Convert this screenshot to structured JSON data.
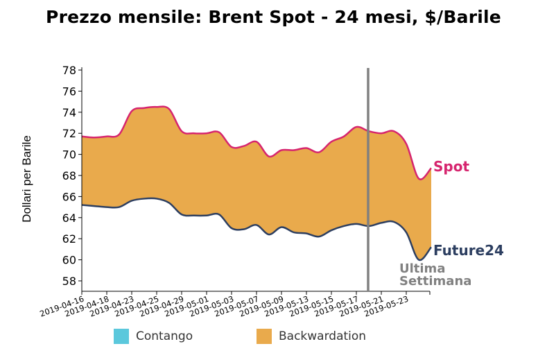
{
  "title": "Prezzo mensile: Brent Spot - 24 mesi, $/Barile",
  "colors": {
    "spot": "#d6246e",
    "future": "#2c3e60",
    "backwardation": "#e9aa4c",
    "contango": "#5bc8dc",
    "marker": "#808080"
  },
  "annotations": {
    "spot_label": "Spot",
    "future_label": "Future24",
    "marker_line1": "Ultima",
    "marker_line2": "Settimana"
  },
  "legend": {
    "contango": "Contango",
    "backwardation": "Backwardation"
  },
  "chart_data": {
    "type": "area",
    "title": "Prezzo mensile: Brent Spot - 24 mesi, $/Barile",
    "xlabel": "",
    "ylabel": "Dollari per Barile",
    "ylim": [
      57,
      78.2
    ],
    "yticks": [
      58,
      60,
      62,
      64,
      66,
      68,
      70,
      72,
      74,
      76,
      78
    ],
    "xtick_labels": [
      "2019-04-16",
      "2019-04-18",
      "2019-04-23",
      "2019-04-25",
      "2019-04-29",
      "2019-05-01",
      "2019-05-03",
      "2019-05-07",
      "2019-05-09",
      "2019-05-13",
      "2019-05-15",
      "2019-05-17",
      "2019-05-21",
      "2019-05-23"
    ],
    "grid": false,
    "legend_position": "bottom",
    "vertical_marker": {
      "label": "Ultima Settimana",
      "x_index": 23.1
    },
    "series": [
      {
        "name": "Spot",
        "values": [
          71.7,
          71.6,
          71.7,
          71.9,
          74.1,
          74.4,
          74.5,
          74.3,
          72.2,
          72.0,
          72.0,
          72.1,
          70.7,
          70.8,
          71.2,
          69.8,
          70.4,
          70.4,
          70.6,
          70.2,
          71.2,
          71.7,
          72.6,
          72.2,
          72.0,
          72.2,
          71.0,
          67.7,
          68.7
        ]
      },
      {
        "name": "Future24",
        "values": [
          65.2,
          65.1,
          65.0,
          65.0,
          65.6,
          65.8,
          65.8,
          65.4,
          64.3,
          64.2,
          64.2,
          64.3,
          63.0,
          62.9,
          63.3,
          62.4,
          63.1,
          62.6,
          62.5,
          62.2,
          62.8,
          63.2,
          63.4,
          63.2,
          63.5,
          63.6,
          62.6,
          60.0,
          61.2
        ]
      }
    ]
  }
}
